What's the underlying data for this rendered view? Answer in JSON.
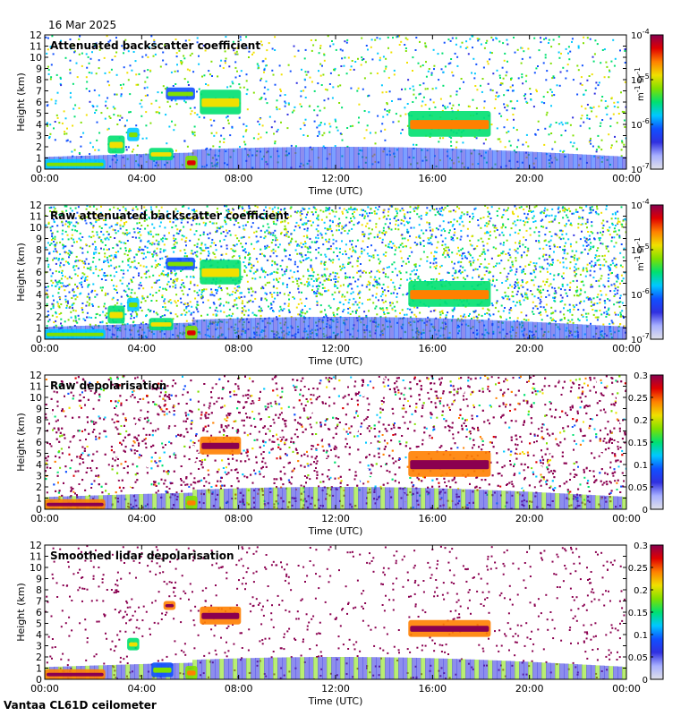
{
  "date": "16 Mar 2025",
  "instrument": "Vantaa CL61D ceilometer",
  "colors": {
    "colormap": [
      "#e0e0e8",
      "#a8b0ff",
      "#3030e0",
      "#1050ff",
      "#00c8ff",
      "#00e070",
      "#80e000",
      "#f0e000",
      "#ff8000",
      "#e00000",
      "#8a0050"
    ],
    "frame": "#000000",
    "background": "#ffffff"
  },
  "chart_data": [
    {
      "type": "heatmap",
      "title": "Attenuated backscatter coefficient",
      "xlabel": "Time (UTC)",
      "ylabel": "Height (km)",
      "xticks": [
        "00:00",
        "04:00",
        "08:00",
        "12:00",
        "16:00",
        "20:00",
        "00:00"
      ],
      "yticks": [
        "0",
        "1",
        "2",
        "3",
        "4",
        "5",
        "6",
        "7",
        "8",
        "9",
        "10",
        "11",
        "12"
      ],
      "ylim": [
        0,
        12
      ],
      "xlim_hours": [
        0,
        24
      ],
      "colorbar": {
        "scale": "log",
        "ticks": [
          {
            "base": "10",
            "exp": "-7"
          },
          {
            "base": "10",
            "exp": "-6"
          },
          {
            "base": "10",
            "exp": "-5"
          },
          {
            "base": "10",
            "exp": "-4"
          }
        ],
        "unit": {
          "a": "m",
          "ae": "-1",
          "b": "sr",
          "be": "-1"
        }
      },
      "noise": "sparse",
      "features": [
        {
          "t0": 0.0,
          "t1": 2.5,
          "h0": 0.0,
          "h1": 0.9,
          "lvl": 0.62
        },
        {
          "t0": 2.6,
          "t1": 3.3,
          "h0": 1.4,
          "h1": 3.0,
          "lvl": 0.72
        },
        {
          "t0": 3.4,
          "t1": 3.9,
          "h0": 2.5,
          "h1": 3.7,
          "lvl": 0.6
        },
        {
          "t0": 4.3,
          "t1": 5.3,
          "h0": 0.8,
          "h1": 1.9,
          "lvl": 0.72
        },
        {
          "t0": 5.8,
          "t1": 6.3,
          "h0": 0.0,
          "h1": 1.2,
          "lvl": 0.82
        },
        {
          "t0": 5.0,
          "t1": 6.2,
          "h0": 6.2,
          "h1": 7.3,
          "lvl": 0.55
        },
        {
          "t0": 6.4,
          "t1": 8.1,
          "h0": 4.9,
          "h1": 7.1,
          "lvl": 0.7
        },
        {
          "t0": 15.0,
          "t1": 18.4,
          "h0": 2.9,
          "h1": 5.2,
          "lvl": 0.74
        }
      ]
    },
    {
      "type": "heatmap",
      "title": "Raw attenuated backscatter coefficient",
      "xlabel": "Time (UTC)",
      "ylabel": "Height (km)",
      "xticks": [
        "00:00",
        "04:00",
        "08:00",
        "12:00",
        "16:00",
        "20:00",
        "00:00"
      ],
      "yticks": [
        "0",
        "1",
        "2",
        "3",
        "4",
        "5",
        "6",
        "7",
        "8",
        "9",
        "10",
        "11",
        "12"
      ],
      "ylim": [
        0,
        12
      ],
      "xlim_hours": [
        0,
        24
      ],
      "colorbar": {
        "scale": "log",
        "ticks": [
          {
            "base": "10",
            "exp": "-7"
          },
          {
            "base": "10",
            "exp": "-6"
          },
          {
            "base": "10",
            "exp": "-5"
          },
          {
            "base": "10",
            "exp": "-4"
          }
        ],
        "unit": {
          "a": "m",
          "ae": "-1",
          "b": "sr",
          "be": "-1"
        }
      },
      "noise": "dense",
      "features": [
        {
          "t0": 0.0,
          "t1": 2.5,
          "h0": 0.0,
          "h1": 0.9,
          "lvl": 0.62
        },
        {
          "t0": 2.6,
          "t1": 3.3,
          "h0": 1.4,
          "h1": 3.0,
          "lvl": 0.72
        },
        {
          "t0": 3.4,
          "t1": 3.9,
          "h0": 2.5,
          "h1": 3.7,
          "lvl": 0.6
        },
        {
          "t0": 4.3,
          "t1": 5.3,
          "h0": 0.8,
          "h1": 1.9,
          "lvl": 0.72
        },
        {
          "t0": 5.8,
          "t1": 6.3,
          "h0": 0.0,
          "h1": 1.2,
          "lvl": 0.82
        },
        {
          "t0": 5.0,
          "t1": 6.2,
          "h0": 6.2,
          "h1": 7.3,
          "lvl": 0.55
        },
        {
          "t0": 6.4,
          "t1": 8.1,
          "h0": 4.9,
          "h1": 7.1,
          "lvl": 0.7
        },
        {
          "t0": 15.0,
          "t1": 18.4,
          "h0": 2.9,
          "h1": 5.2,
          "lvl": 0.74
        }
      ]
    },
    {
      "type": "heatmap",
      "title": "Raw depolarisation",
      "xlabel": "Time (UTC)",
      "ylabel": "Height (km)",
      "xticks": [
        "00:00",
        "04:00",
        "08:00",
        "12:00",
        "16:00",
        "20:00",
        "00:00"
      ],
      "yticks": [
        "0",
        "1",
        "2",
        "3",
        "4",
        "5",
        "6",
        "7",
        "8",
        "9",
        "10",
        "11",
        "12"
      ],
      "ylim": [
        0,
        12
      ],
      "xlim_hours": [
        0,
        24
      ],
      "colorbar": {
        "scale": "linear",
        "ticks": [
          "0",
          "0.05",
          "0.1",
          "0.15",
          "0.2",
          "0.25",
          "0.3"
        ],
        "range": [
          0,
          0.3
        ]
      },
      "noise": "depol",
      "features": [
        {
          "t0": 0.0,
          "t1": 2.5,
          "h0": 0.0,
          "h1": 0.9,
          "lvl": 0.97
        },
        {
          "t0": 15.0,
          "t1": 18.4,
          "h0": 2.9,
          "h1": 5.2,
          "lvl": 0.97
        },
        {
          "t0": 6.4,
          "t1": 8.1,
          "h0": 4.9,
          "h1": 6.5,
          "lvl": 0.97
        },
        {
          "t0": 5.8,
          "t1": 6.3,
          "h0": 0.0,
          "h1": 1.2,
          "lvl": 0.75
        }
      ]
    },
    {
      "type": "heatmap",
      "title": "Smoothed lidar depolarisation",
      "xlabel": "Time (UTC)",
      "ylabel": "Height (km)",
      "xticks": [
        "00:00",
        "04:00",
        "08:00",
        "12:00",
        "16:00",
        "20:00",
        "00:00"
      ],
      "yticks": [
        "0",
        "1",
        "2",
        "3",
        "4",
        "5",
        "6",
        "7",
        "8",
        "9",
        "10",
        "11",
        "12"
      ],
      "ylim": [
        0,
        12
      ],
      "xlim_hours": [
        0,
        24
      ],
      "colorbar": {
        "scale": "linear",
        "ticks": [
          "0",
          "0.05",
          "0.1",
          "0.15",
          "0.2",
          "0.25",
          "0.3"
        ],
        "range": [
          0,
          0.3
        ]
      },
      "noise": "smoothdepol",
      "features": [
        {
          "t0": 0.0,
          "t1": 2.5,
          "h0": 0.0,
          "h1": 0.9,
          "lvl": 0.97
        },
        {
          "t0": 15.0,
          "t1": 18.4,
          "h0": 3.8,
          "h1": 5.3,
          "lvl": 0.97
        },
        {
          "t0": 4.9,
          "t1": 5.4,
          "h0": 6.2,
          "h1": 7.0,
          "lvl": 0.97
        },
        {
          "t0": 6.4,
          "t1": 8.1,
          "h0": 4.9,
          "h1": 6.5,
          "lvl": 0.97
        },
        {
          "t0": 3.4,
          "t1": 3.9,
          "h0": 2.6,
          "h1": 3.7,
          "lvl": 0.7
        },
        {
          "t0": 4.4,
          "t1": 5.3,
          "h0": 0.2,
          "h1": 1.5,
          "lvl": 0.55
        },
        {
          "t0": 5.8,
          "t1": 6.3,
          "h0": 0.0,
          "h1": 1.2,
          "lvl": 0.75
        }
      ]
    }
  ]
}
